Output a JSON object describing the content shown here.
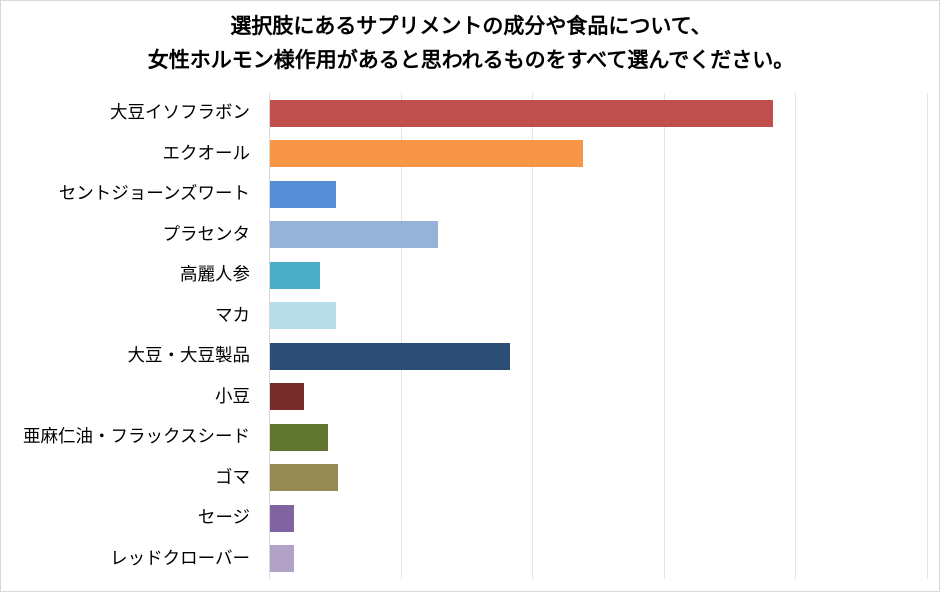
{
  "chart_data": {
    "type": "bar",
    "orientation": "horizontal",
    "title": "選択肢にあるサプリメントの成分や食品について、女性ホルモン様作用があると思われるものをすべて選んでください。",
    "title_lines": [
      "選択肢にあるサプリメントの成分や食品について、",
      "女性ホルモン様作用があると思われるものをすべて選んでください。"
    ],
    "xlabel": "",
    "ylabel": "",
    "xlim": [
      0,
      50
    ],
    "x_gridlines": [
      0,
      10,
      20,
      30,
      40,
      50
    ],
    "x_tick_labels_visible": false,
    "grid": true,
    "legend": "none",
    "categories": [
      "大豆イソフラボン",
      "エクオール",
      "セントジョーンズワート",
      "プラセンタ",
      "高麗人参",
      "マカ",
      "大豆・大豆製品",
      "小豆",
      "亜麻仁油・フラックスシード",
      "ゴマ",
      "セージ",
      "レッドクローバー"
    ],
    "values": [
      38.2,
      23.8,
      5.0,
      12.8,
      3.8,
      5.0,
      18.2,
      2.6,
      4.4,
      5.2,
      1.8,
      1.8
    ],
    "colors": [
      "#C0504D",
      "#F79646",
      "#558ED5",
      "#95B3D7",
      "#4BACC6",
      "#B7DEE8",
      "#2C4D75",
      "#772C2A",
      "#5F7530",
      "#948A54",
      "#8064A2",
      "#B3A2C7"
    ]
  }
}
